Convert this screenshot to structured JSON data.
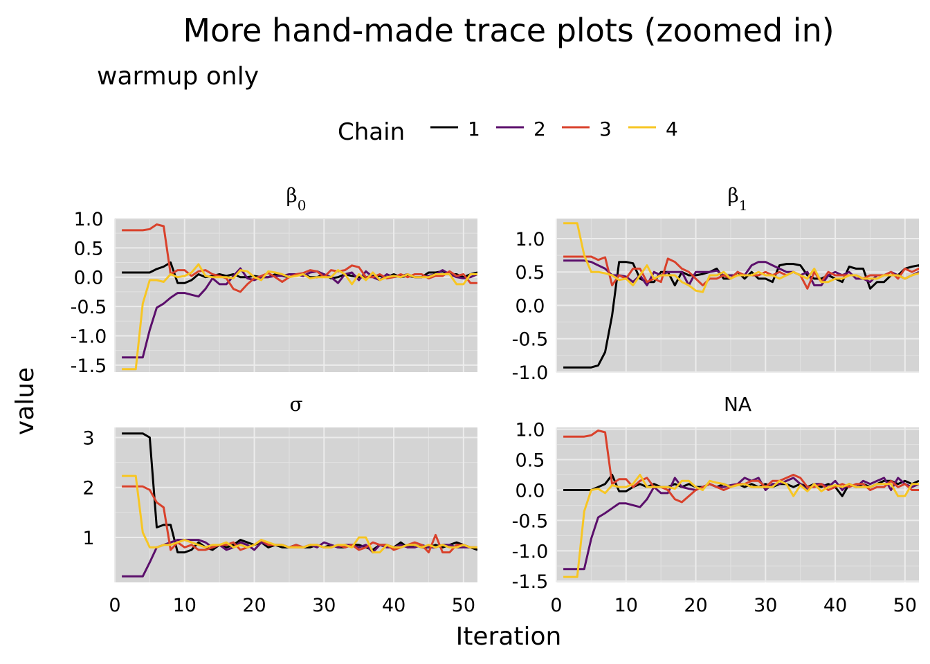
{
  "title": "More hand-made trace plots (zoomed in)",
  "subtitle": "warmup only",
  "legend": {
    "title": "Chain",
    "items": [
      {
        "label": "1",
        "color": "#000000"
      },
      {
        "label": "2",
        "color": "#5b0f6b"
      },
      {
        "label": "3",
        "color": "#d9412b"
      },
      {
        "label": "4",
        "color": "#f7c623"
      }
    ]
  },
  "x_axis_label": "Iteration",
  "y_axis_label": "value",
  "chart_data": {
    "type": "line",
    "facets": [
      {
        "strip": "β",
        "strip_sub": "0",
        "x_ticks": [
          "0",
          "10",
          "20",
          "30",
          "40",
          "50"
        ],
        "y_ticks": [
          "1.0",
          "0.5",
          "0.0",
          "-0.5",
          "-1.0",
          "-1.5"
        ],
        "series": [
          {
            "chain": "1",
            "values": [
              0.08,
              0.08,
              0.08,
              0.08,
              0.08,
              0.14,
              0.18,
              0.25,
              -0.1,
              -0.1,
              -0.05,
              0.05,
              0.0,
              0.02,
              0.05,
              0.02,
              0.05,
              0.0,
              0.0,
              0.02,
              0.0,
              0.0,
              0.05,
              0.02,
              0.0,
              0.05,
              0.05,
              0.0,
              0.0,
              0.05,
              -0.02,
              0.0,
              0.05,
              0.02,
              0.0,
              0.0,
              0.02,
              0.02,
              0.0,
              0.05,
              0.0,
              0.02,
              0.0,
              0.0,
              0.08,
              0.08,
              0.1,
              0.05,
              0.05,
              0.0,
              0.05,
              0.08
            ]
          },
          {
            "chain": "2",
            "values": [
              -1.37,
              -1.37,
              -1.37,
              -1.37,
              -0.9,
              -0.52,
              -0.45,
              -0.35,
              -0.27,
              -0.27,
              -0.3,
              -0.33,
              -0.2,
              -0.02,
              -0.12,
              -0.12,
              0.02,
              0.15,
              -0.02,
              -0.05,
              0.0,
              0.0,
              0.02,
              0.02,
              0.05,
              0.05,
              0.02,
              0.08,
              0.1,
              0.05,
              0.0,
              -0.1,
              0.05,
              0.08,
              -0.05,
              0.1,
              0.0,
              -0.05,
              0.05,
              0.0,
              0.02,
              0.05,
              0.0,
              0.0,
              0.02,
              0.05,
              0.12,
              0.05,
              0.0,
              -0.02,
              0.0,
              0.05
            ]
          },
          {
            "chain": "3",
            "values": [
              0.8,
              0.8,
              0.8,
              0.8,
              0.82,
              0.9,
              0.87,
              0.05,
              0.12,
              0.12,
              0.02,
              0.1,
              0.12,
              0.05,
              0.02,
              -0.02,
              -0.2,
              -0.25,
              -0.12,
              -0.02,
              0.02,
              0.07,
              0.0,
              -0.08,
              0.0,
              0.05,
              0.07,
              0.12,
              0.1,
              0.0,
              0.12,
              0.1,
              0.12,
              0.2,
              0.17,
              0.0,
              0.0,
              0.05,
              -0.02,
              0.0,
              0.05,
              0.0,
              0.05,
              0.05,
              -0.02,
              0.02,
              0.02,
              0.1,
              0.02,
              0.05,
              -0.1,
              -0.1
            ]
          },
          {
            "chain": "4",
            "values": [
              -1.57,
              -1.57,
              -1.57,
              -0.45,
              -0.05,
              -0.05,
              -0.08,
              0.05,
              0.0,
              0.02,
              0.08,
              0.22,
              0.02,
              0.0,
              0.0,
              0.0,
              -0.02,
              0.12,
              0.1,
              0.0,
              -0.05,
              0.1,
              0.08,
              0.05,
              0.0,
              0.02,
              0.05,
              -0.02,
              0.0,
              0.0,
              0.0,
              0.12,
              0.05,
              -0.12,
              0.05,
              -0.05,
              0.08,
              -0.05,
              0.0,
              0.02,
              0.0,
              0.05,
              0.0,
              0.0,
              0.0,
              0.05,
              0.05,
              0.05,
              -0.12,
              -0.12,
              0.05,
              0.05
            ]
          }
        ]
      },
      {
        "strip": "β",
        "strip_sub": "1",
        "x_ticks": [
          "0",
          "10",
          "20",
          "30",
          "40",
          "50"
        ],
        "y_ticks": [
          "1.0",
          "0.5",
          "0.0",
          "-0.5",
          "-1.0"
        ],
        "series": [
          {
            "chain": "1",
            "values": [
              -0.93,
              -0.93,
              -0.93,
              -0.93,
              -0.93,
              -0.9,
              -0.7,
              -0.15,
              0.65,
              0.65,
              0.63,
              0.4,
              0.35,
              0.35,
              0.5,
              0.5,
              0.3,
              0.5,
              0.45,
              0.45,
              0.47,
              0.5,
              0.55,
              0.4,
              0.4,
              0.5,
              0.4,
              0.5,
              0.4,
              0.4,
              0.35,
              0.6,
              0.62,
              0.62,
              0.6,
              0.45,
              0.4,
              0.4,
              0.45,
              0.4,
              0.35,
              0.58,
              0.55,
              0.55,
              0.25,
              0.35,
              0.35,
              0.45,
              0.45,
              0.55,
              0.58,
              0.6,
              0.45
            ]
          },
          {
            "chain": "2",
            "values": [
              0.67,
              0.67,
              0.67,
              0.67,
              0.65,
              0.6,
              0.55,
              0.45,
              0.45,
              0.43,
              0.35,
              0.45,
              0.3,
              0.5,
              0.45,
              0.5,
              0.5,
              0.5,
              0.3,
              0.5,
              0.5,
              0.5,
              0.52,
              0.45,
              0.45,
              0.45,
              0.45,
              0.6,
              0.65,
              0.65,
              0.6,
              0.55,
              0.5,
              0.5,
              0.45,
              0.5,
              0.3,
              0.3,
              0.45,
              0.5,
              0.45,
              0.5,
              0.4,
              0.4,
              0.35,
              0.45,
              0.45,
              0.5,
              0.45,
              0.4,
              0.45,
              0.5
            ]
          },
          {
            "chain": "3",
            "values": [
              0.73,
              0.73,
              0.73,
              0.73,
              0.73,
              0.68,
              0.72,
              0.3,
              0.45,
              0.4,
              0.55,
              0.55,
              0.35,
              0.4,
              0.35,
              0.7,
              0.65,
              0.55,
              0.5,
              0.4,
              0.3,
              0.4,
              0.4,
              0.45,
              0.4,
              0.5,
              0.45,
              0.45,
              0.45,
              0.5,
              0.45,
              0.5,
              0.45,
              0.5,
              0.45,
              0.25,
              0.5,
              0.35,
              0.5,
              0.45,
              0.45,
              0.45,
              0.45,
              0.4,
              0.45,
              0.45,
              0.45,
              0.5,
              0.4,
              0.55,
              0.5,
              0.55,
              0.45
            ]
          },
          {
            "chain": "4",
            "values": [
              1.23,
              1.23,
              1.23,
              0.75,
              0.5,
              0.5,
              0.48,
              0.45,
              0.38,
              0.4,
              0.3,
              0.45,
              0.6,
              0.4,
              0.45,
              0.45,
              0.45,
              0.35,
              0.3,
              0.22,
              0.2,
              0.45,
              0.45,
              0.5,
              0.4,
              0.45,
              0.45,
              0.45,
              0.5,
              0.45,
              0.45,
              0.4,
              0.45,
              0.5,
              0.45,
              0.4,
              0.55,
              0.35,
              0.35,
              0.4,
              0.4,
              0.45,
              0.45,
              0.4,
              0.4,
              0.4,
              0.45,
              0.45,
              0.45,
              0.4,
              0.45,
              0.48,
              0.48
            ]
          }
        ]
      },
      {
        "strip": "σ",
        "strip_sub": "",
        "x_ticks": [
          "0",
          "10",
          "20",
          "30",
          "40",
          "50"
        ],
        "y_ticks": [
          "3",
          "2",
          "1"
        ],
        "series": [
          {
            "chain": "1",
            "values": [
              3.08,
              3.08,
              3.08,
              3.08,
              3.0,
              1.2,
              1.25,
              1.25,
              0.7,
              0.7,
              0.75,
              0.9,
              0.8,
              0.75,
              0.85,
              0.8,
              0.85,
              0.95,
              0.9,
              0.85,
              0.9,
              0.8,
              0.85,
              0.8,
              0.8,
              0.85,
              0.8,
              0.8,
              0.85,
              0.8,
              0.85,
              0.8,
              0.8,
              0.85,
              0.85,
              0.8,
              0.75,
              0.85,
              0.85,
              0.8,
              0.9,
              0.8,
              0.85,
              0.8,
              0.8,
              0.85,
              0.8,
              0.85,
              0.9,
              0.85,
              0.8,
              0.75
            ]
          },
          {
            "chain": "2",
            "values": [
              0.22,
              0.22,
              0.22,
              0.22,
              0.5,
              0.8,
              0.85,
              0.9,
              0.95,
              0.95,
              0.95,
              0.95,
              0.9,
              0.8,
              0.85,
              0.75,
              0.8,
              0.9,
              0.85,
              0.75,
              0.9,
              0.85,
              0.85,
              0.85,
              0.8,
              0.8,
              0.8,
              0.85,
              0.8,
              0.9,
              0.85,
              0.8,
              0.85,
              0.85,
              0.8,
              0.85,
              0.7,
              0.85,
              0.8,
              0.8,
              0.85,
              0.8,
              0.8,
              0.85,
              0.8,
              0.8,
              0.85,
              0.85,
              0.8,
              0.8,
              0.8,
              0.8
            ]
          },
          {
            "chain": "3",
            "values": [
              2.02,
              2.02,
              2.02,
              2.02,
              1.95,
              1.7,
              1.6,
              0.75,
              0.9,
              0.8,
              0.85,
              0.75,
              0.75,
              0.8,
              0.85,
              0.85,
              0.9,
              0.75,
              0.8,
              0.85,
              0.95,
              0.85,
              0.85,
              0.85,
              0.8,
              0.85,
              0.8,
              0.85,
              0.85,
              0.8,
              0.8,
              0.85,
              0.8,
              0.85,
              0.75,
              0.8,
              0.9,
              0.85,
              0.85,
              0.75,
              0.8,
              0.85,
              0.9,
              0.85,
              0.7,
              1.05,
              0.7,
              0.7,
              0.85,
              0.85,
              0.8,
              0.8
            ]
          },
          {
            "chain": "4",
            "values": [
              2.23,
              2.23,
              2.23,
              1.1,
              0.8,
              0.8,
              0.85,
              0.85,
              0.9,
              0.95,
              0.9,
              0.85,
              0.8,
              0.85,
              0.85,
              0.9,
              0.8,
              0.85,
              0.8,
              0.85,
              0.95,
              0.9,
              0.85,
              0.85,
              0.8,
              0.8,
              0.8,
              0.85,
              0.85,
              0.8,
              0.8,
              0.85,
              0.85,
              0.8,
              1.0,
              1.0,
              0.7,
              0.7,
              0.85,
              0.8,
              0.8,
              0.85,
              0.85,
              0.8,
              0.85,
              0.8,
              0.85,
              0.8,
              0.8,
              0.85,
              0.8,
              0.8
            ]
          }
        ]
      },
      {
        "strip": "NA",
        "strip_sub": "",
        "x_ticks": [
          "0",
          "10",
          "20",
          "30",
          "40",
          "50"
        ],
        "y_ticks": [
          "1.0",
          "0.5",
          "0.0",
          "-0.5",
          "-1.0",
          "-1.5"
        ],
        "series": [
          {
            "chain": "1",
            "values": [
              0.0,
              0.0,
              0.0,
              0.0,
              0.0,
              0.05,
              0.1,
              0.25,
              -0.02,
              -0.02,
              0.05,
              0.1,
              0.05,
              0.1,
              0.05,
              0.05,
              0.1,
              0.05,
              0.1,
              0.05,
              0.05,
              0.1,
              0.05,
              0.1,
              0.05,
              0.1,
              0.05,
              0.1,
              0.05,
              0.1,
              0.05,
              0.1,
              0.1,
              0.05,
              0.1,
              0.05,
              0.1,
              0.05,
              0.1,
              0.05,
              -0.1,
              0.1,
              0.05,
              0.1,
              0.05,
              0.1,
              0.15,
              0.15,
              0.1,
              0.15,
              0.1,
              0.15
            ]
          },
          {
            "chain": "2",
            "values": [
              -1.3,
              -1.3,
              -1.3,
              -1.3,
              -0.8,
              -0.45,
              -0.38,
              -0.3,
              -0.22,
              -0.22,
              -0.25,
              -0.28,
              -0.15,
              0.05,
              -0.05,
              -0.05,
              0.2,
              0.05,
              0.02,
              0.0,
              0.05,
              0.1,
              0.05,
              0.05,
              0.08,
              0.1,
              0.2,
              0.15,
              0.2,
              0.0,
              0.1,
              0.1,
              0.15,
              0.2,
              0.1,
              0.0,
              0.1,
              0.1,
              0.05,
              0.15,
              0.0,
              0.1,
              0.05,
              0.15,
              0.1,
              0.15,
              0.2,
              0.0,
              0.2,
              0.1,
              0.05,
              0.1
            ]
          },
          {
            "chain": "3",
            "values": [
              0.88,
              0.88,
              0.88,
              0.88,
              0.9,
              0.98,
              0.95,
              0.1,
              0.18,
              0.18,
              0.05,
              0.15,
              0.2,
              0.05,
              0.05,
              0.0,
              -0.15,
              -0.2,
              -0.1,
              0.0,
              0.05,
              0.1,
              0.05,
              0.0,
              0.05,
              0.1,
              0.1,
              0.15,
              0.15,
              0.05,
              0.15,
              0.15,
              0.2,
              0.25,
              0.2,
              0.05,
              0.05,
              0.1,
              0.0,
              0.05,
              0.1,
              0.05,
              0.1,
              0.1,
              0.0,
              0.05,
              0.05,
              0.15,
              0.05,
              0.1,
              0.0,
              0.0
            ]
          },
          {
            "chain": "4",
            "values": [
              -1.43,
              -1.43,
              -1.43,
              -0.35,
              0.0,
              0.02,
              -0.05,
              0.08,
              0.05,
              0.05,
              0.1,
              0.25,
              0.05,
              0.05,
              0.05,
              0.05,
              0.02,
              0.15,
              0.15,
              0.05,
              0.0,
              0.15,
              0.12,
              0.1,
              0.05,
              0.08,
              0.1,
              0.05,
              0.05,
              0.05,
              0.05,
              0.15,
              0.1,
              -0.1,
              0.08,
              -0.02,
              0.1,
              -0.02,
              0.05,
              0.08,
              0.05,
              0.1,
              0.05,
              0.05,
              0.05,
              0.1,
              0.1,
              0.1,
              -0.1,
              -0.1,
              0.1,
              0.1
            ]
          }
        ]
      }
    ]
  }
}
